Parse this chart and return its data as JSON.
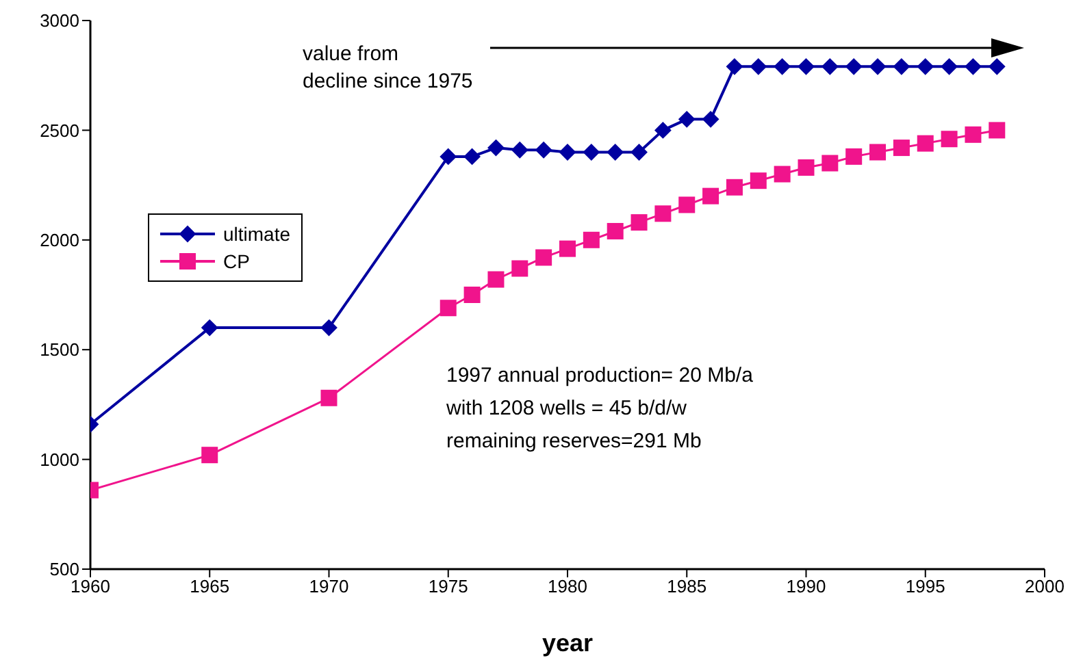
{
  "chart_data": {
    "type": "line",
    "xlabel": "year",
    "x": [
      1960,
      1965,
      1970,
      1975,
      1976,
      1977,
      1978,
      1979,
      1980,
      1981,
      1982,
      1983,
      1984,
      1985,
      1986,
      1987,
      1988,
      1989,
      1990,
      1991,
      1992,
      1993,
      1994,
      1995,
      1996,
      1997,
      1998
    ],
    "series": [
      {
        "name": "ultimate",
        "color": "#0000a0",
        "marker": "diamond",
        "values": [
          1160,
          1600,
          1600,
          2380,
          2380,
          2420,
          2410,
          2410,
          2400,
          2400,
          2400,
          2400,
          2500,
          2550,
          2550,
          2790,
          2790,
          2790,
          2790,
          2790,
          2790,
          2790,
          2790,
          2790,
          2790,
          2790,
          2790
        ]
      },
      {
        "name": "CP",
        "color": "#f0148c",
        "marker": "square",
        "values": [
          860,
          1020,
          1280,
          1690,
          1750,
          1820,
          1870,
          1920,
          1960,
          2000,
          2040,
          2080,
          2120,
          2160,
          2200,
          2240,
          2270,
          2300,
          2330,
          2350,
          2380,
          2400,
          2420,
          2440,
          2460,
          2480,
          2500
        ]
      }
    ],
    "xlim": [
      1960,
      2000
    ],
    "xticks": [
      1960,
      1965,
      1970,
      1975,
      1980,
      1985,
      1990,
      1995,
      2000
    ],
    "ylim": [
      500,
      3000
    ],
    "yticks": [
      500,
      1000,
      1500,
      2000,
      2500,
      3000
    ],
    "grid": false,
    "legend": "left",
    "line_style": "solid",
    "annotations": [
      "value from\ndecline since 1975",
      "1997 annual production= 20 Mb/a\nwith 1208 wells = 45 b/d/w\nremaining reserves=291 Mb"
    ]
  }
}
